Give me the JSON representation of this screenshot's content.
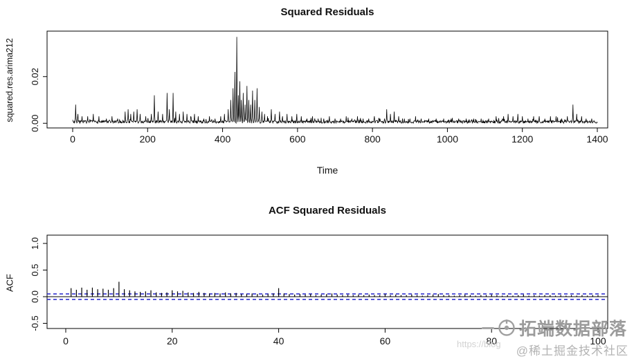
{
  "charts": [
    {
      "type": "line",
      "title": "Squared Residuals",
      "xlabel": "Time",
      "ylabel": "squared.res.arima212",
      "xlim": [
        0,
        1400
      ],
      "ylim": [
        -0.002,
        0.038
      ],
      "x_ticks": [
        0,
        200,
        400,
        600,
        800,
        1000,
        1200,
        1400
      ],
      "y_ticks": [
        0.0,
        0.02
      ],
      "y_tick_labels": [
        "0.00",
        "0.02"
      ],
      "line_color": "#000000",
      "noise": {
        "seed": 7,
        "n": 1400,
        "base": 0.0015
      },
      "spikes": [
        [
          8,
          0.008
        ],
        [
          14,
          0.004
        ],
        [
          25,
          0.003
        ],
        [
          40,
          0.003
        ],
        [
          55,
          0.004
        ],
        [
          70,
          0.003
        ],
        [
          90,
          0.002
        ],
        [
          105,
          0.003
        ],
        [
          120,
          0.002
        ],
        [
          140,
          0.005
        ],
        [
          148,
          0.006
        ],
        [
          155,
          0.004
        ],
        [
          163,
          0.005
        ],
        [
          172,
          0.006
        ],
        [
          180,
          0.004
        ],
        [
          195,
          0.003
        ],
        [
          210,
          0.004
        ],
        [
          218,
          0.012
        ],
        [
          228,
          0.005
        ],
        [
          240,
          0.004
        ],
        [
          252,
          0.013
        ],
        [
          258,
          0.006
        ],
        [
          268,
          0.013
        ],
        [
          275,
          0.005
        ],
        [
          285,
          0.004
        ],
        [
          295,
          0.005
        ],
        [
          305,
          0.004
        ],
        [
          315,
          0.003
        ],
        [
          325,
          0.004
        ],
        [
          335,
          0.003
        ],
        [
          350,
          0.002
        ],
        [
          365,
          0.003
        ],
        [
          380,
          0.002
        ],
        [
          395,
          0.003
        ],
        [
          405,
          0.004
        ],
        [
          415,
          0.006
        ],
        [
          422,
          0.01
        ],
        [
          428,
          0.015
        ],
        [
          433,
          0.022
        ],
        [
          438,
          0.037
        ],
        [
          442,
          0.012
        ],
        [
          446,
          0.018
        ],
        [
          450,
          0.01
        ],
        [
          455,
          0.013
        ],
        [
          460,
          0.008
        ],
        [
          465,
          0.016
        ],
        [
          470,
          0.01
        ],
        [
          475,
          0.008
        ],
        [
          480,
          0.014
        ],
        [
          486,
          0.01
        ],
        [
          492,
          0.015
        ],
        [
          498,
          0.007
        ],
        [
          505,
          0.005
        ],
        [
          512,
          0.004
        ],
        [
          520,
          0.003
        ],
        [
          530,
          0.006
        ],
        [
          540,
          0.004
        ],
        [
          552,
          0.005
        ],
        [
          560,
          0.003
        ],
        [
          572,
          0.004
        ],
        [
          585,
          0.003
        ],
        [
          598,
          0.004
        ],
        [
          610,
          0.003
        ],
        [
          625,
          0.002
        ],
        [
          640,
          0.003
        ],
        [
          655,
          0.002
        ],
        [
          670,
          0.002
        ],
        [
          685,
          0.003
        ],
        [
          700,
          0.002
        ],
        [
          715,
          0.002
        ],
        [
          730,
          0.003
        ],
        [
          745,
          0.002
        ],
        [
          760,
          0.003
        ],
        [
          775,
          0.002
        ],
        [
          790,
          0.002
        ],
        [
          805,
          0.003
        ],
        [
          820,
          0.002
        ],
        [
          838,
          0.006
        ],
        [
          848,
          0.004
        ],
        [
          858,
          0.005
        ],
        [
          870,
          0.003
        ],
        [
          885,
          0.002
        ],
        [
          900,
          0.002
        ],
        [
          915,
          0.003
        ],
        [
          930,
          0.002
        ],
        [
          950,
          0.002
        ],
        [
          970,
          0.002
        ],
        [
          990,
          0.002
        ],
        [
          1010,
          0.002
        ],
        [
          1030,
          0.002
        ],
        [
          1050,
          0.002
        ],
        [
          1070,
          0.002
        ],
        [
          1090,
          0.002
        ],
        [
          1110,
          0.002
        ],
        [
          1130,
          0.003
        ],
        [
          1150,
          0.003
        ],
        [
          1162,
          0.004
        ],
        [
          1175,
          0.003
        ],
        [
          1188,
          0.004
        ],
        [
          1200,
          0.003
        ],
        [
          1215,
          0.002
        ],
        [
          1230,
          0.003
        ],
        [
          1245,
          0.003
        ],
        [
          1260,
          0.002
        ],
        [
          1275,
          0.003
        ],
        [
          1290,
          0.003
        ],
        [
          1305,
          0.002
        ],
        [
          1320,
          0.003
        ],
        [
          1335,
          0.008
        ],
        [
          1345,
          0.004
        ],
        [
          1358,
          0.003
        ],
        [
          1370,
          0.002
        ],
        [
          1385,
          0.002
        ]
      ]
    },
    {
      "type": "acf-bar",
      "title": "ACF Squared Residuals",
      "xlabel": "",
      "ylabel": "ACF",
      "xlim": [
        0,
        100
      ],
      "ylim": [
        -0.5,
        1.0
      ],
      "x_ticks": [
        0,
        20,
        40,
        60,
        80,
        100
      ],
      "y_ticks": [
        -0.5,
        0.0,
        0.5,
        1.0
      ],
      "y_tick_labels": [
        "-0.5",
        "0.0",
        "0.5",
        "1.0"
      ],
      "conf_level": 0.052,
      "conf_color": "#2222cc",
      "bar_color": "#000000",
      "start_lag": 1,
      "values": [
        0.16,
        0.13,
        0.17,
        0.13,
        0.17,
        0.14,
        0.15,
        0.13,
        0.16,
        0.28,
        0.14,
        0.12,
        0.1,
        0.09,
        0.1,
        0.12,
        0.08,
        0.07,
        0.08,
        0.12,
        0.1,
        0.11,
        0.08,
        0.07,
        0.09,
        0.07,
        0.06,
        0.07,
        0.06,
        0.08,
        0.06,
        0.07,
        0.05,
        0.05,
        0.06,
        0.05,
        0.04,
        0.05,
        0.06,
        0.16,
        0.06,
        0.05,
        0.04,
        0.05,
        0.04,
        0.05,
        0.03,
        0.04,
        0.05,
        0.06,
        0.04,
        0.03,
        0.04,
        0.03,
        0.04,
        0.03,
        0.04,
        0.03,
        0.03,
        0.05,
        0.03,
        0.04,
        0.03,
        0.03,
        0.04,
        0.03,
        0.02,
        0.03,
        0.04,
        0.05,
        0.03,
        0.03,
        0.02,
        0.03,
        0.04,
        0.03,
        0.02,
        0.03,
        0.03,
        0.04,
        0.03,
        0.02,
        0.03,
        0.02,
        0.03,
        0.04,
        0.02,
        0.03,
        0.02,
        0.03,
        0.03,
        0.02,
        0.03,
        0.02,
        0.03,
        0.02,
        0.03,
        0.02,
        0.03,
        0.03
      ]
    }
  ],
  "chart_data": [
    {
      "type": "line",
      "title": "Squared Residuals",
      "xlabel": "Time",
      "ylabel": "squared.res.arima212",
      "xlim": [
        0,
        1400
      ],
      "ylim": [
        0,
        0.038
      ],
      "x_ticks": [
        0,
        200,
        400,
        600,
        800,
        1000,
        1200,
        1400
      ],
      "y_ticks": [
        "0.00",
        "0.02"
      ],
      "note": "noisy near-zero series with spike cluster around t=420-500, max 0.037 at t=438"
    },
    {
      "type": "bar",
      "title": "ACF Squared Residuals",
      "ylabel": "ACF",
      "xlim": [
        0,
        100
      ],
      "ylim": [
        -0.5,
        1.0
      ],
      "x_ticks": [
        0,
        20,
        40,
        60,
        80,
        100
      ],
      "y_ticks": [
        "-0.5",
        "0.0",
        "0.5",
        "1.0"
      ],
      "confidence_band": 0.052,
      "note": "ACF bars decay from ~0.17 with peaks 0.28 at lag 10 and 0.16 at lag 40; blue dashed bands at ±0.052"
    }
  ],
  "watermark": {
    "brand": "拓端数据部落",
    "community": "@稀土掘金技术社区",
    "url": "https://blog"
  }
}
